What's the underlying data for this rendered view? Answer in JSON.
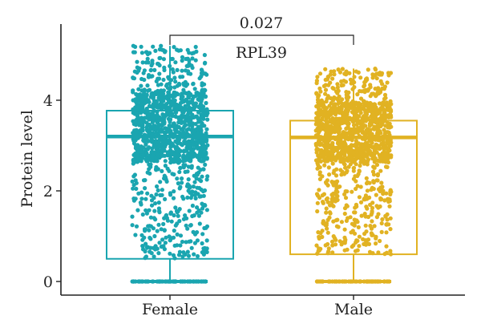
{
  "chart_data": {
    "type": "box",
    "title": "RPL39",
    "ylabel": "Protein level",
    "xlabel": "",
    "categories": [
      "Female",
      "Male"
    ],
    "ylim": [
      -0.3,
      5.5
    ],
    "y_ticks": [
      "0",
      "2",
      "4"
    ],
    "y_tick_values": [
      0,
      2,
      4
    ],
    "grid": false,
    "legend": "none",
    "comparison": {
      "label": "0.027",
      "groups": [
        "Female",
        "Male"
      ]
    },
    "boxes": [
      {
        "group": "Female",
        "color": "#1aa5b0",
        "min": 0,
        "q1": 0.5,
        "median": 3.2,
        "q3": 3.77,
        "max": 5.2
      },
      {
        "group": "Male",
        "color": "#e1b222",
        "min": 0,
        "q1": 0.6,
        "median": 3.18,
        "q3": 3.55,
        "max": 4.7
      }
    ]
  }
}
